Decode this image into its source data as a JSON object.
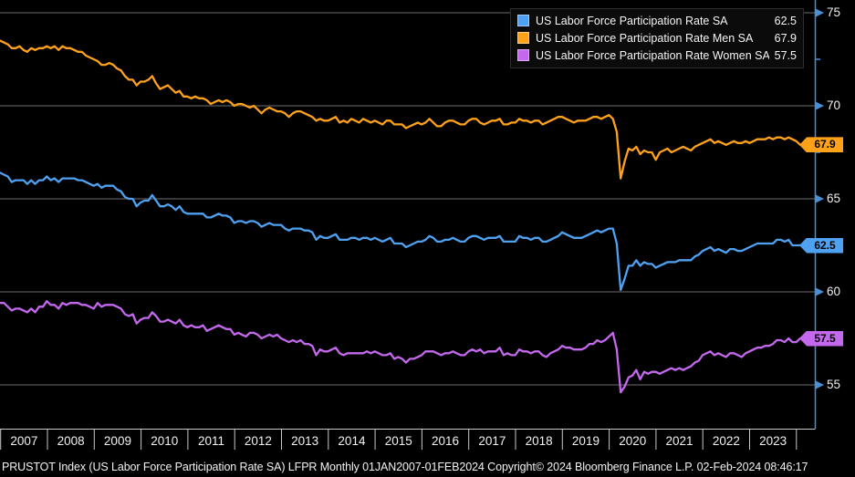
{
  "colors": {
    "background": "#000000",
    "gridline": "#6e6e6e",
    "axis_blue": "#4a8fd4",
    "baseline": "#c9c9c9",
    "text": "#f2f2f2",
    "series_total": "#4fa2f2",
    "series_men": "#ffa219",
    "series_women": "#c468ee"
  },
  "legend": {
    "rows": [
      {
        "label": "US Labor Force Participation Rate SA",
        "value": "62.5",
        "color": "#4fa2f2"
      },
      {
        "label": "US Labor Force Participation Rate Men SA",
        "value": "67.9",
        "color": "#ffa219"
      },
      {
        "label": "US Labor Force Participation Rate Women SA",
        "value": "57.5",
        "color": "#c468ee"
      }
    ]
  },
  "axis_tags": [
    {
      "label": "67.9",
      "value": 67.9,
      "color": "#ffa219"
    },
    {
      "label": "62.5",
      "value": 62.5,
      "color": "#4fa2f2"
    },
    {
      "label": "57.5",
      "value": 57.5,
      "color": "#c468ee"
    }
  ],
  "y_axis": {
    "labels": [
      "75",
      "70",
      "65",
      "60",
      "55"
    ],
    "ticks": [
      75,
      70,
      65,
      60,
      55
    ],
    "minor_ticks": [
      72.5,
      67.5,
      62.5,
      57.5
    ]
  },
  "x_axis": {
    "years": [
      "2007",
      "2008",
      "2009",
      "2010",
      "2011",
      "2012",
      "2013",
      "2014",
      "2015",
      "2016",
      "2017",
      "2018",
      "2019",
      "2020",
      "2021",
      "2022",
      "2023"
    ]
  },
  "status_bar": {
    "text": "PRUSTOT Index (US Labor Force Participation Rate SA) LFPR  Monthly 01JAN2007-01FEB2024 Copyright© 2024 Bloomberg Finance L.P. 02-Feb-2024 08:46:17"
  },
  "chart_data": {
    "type": "line",
    "title": "",
    "frequency": "Monthly",
    "x_range": "01JAN2007-01FEB2024",
    "x_tick_labels": [
      "2007",
      "2008",
      "2009",
      "2010",
      "2011",
      "2012",
      "2013",
      "2014",
      "2015",
      "2016",
      "2017",
      "2018",
      "2019",
      "2020",
      "2021",
      "2022",
      "2023"
    ],
    "ylim": [
      53.3,
      75.4
    ],
    "y_ticks": [
      55,
      60,
      65,
      70,
      75
    ],
    "grid": "horizontal",
    "legend_position": "top-right",
    "series": [
      {
        "name": "US Labor Force Participation Rate SA",
        "color": "#4fa2f2",
        "last_value": 62.5,
        "values": [
          66.4,
          66.3,
          66.2,
          65.9,
          66.0,
          66.0,
          66.0,
          65.8,
          66.0,
          65.8,
          66.0,
          66.0,
          66.2,
          66.0,
          66.1,
          65.9,
          66.1,
          66.1,
          66.1,
          66.1,
          66.0,
          66.0,
          65.9,
          65.8,
          65.7,
          65.8,
          65.6,
          65.7,
          65.7,
          65.7,
          65.5,
          65.4,
          65.1,
          65.0,
          65.0,
          64.6,
          64.8,
          64.9,
          64.9,
          65.2,
          64.9,
          64.6,
          64.6,
          64.7,
          64.6,
          64.4,
          64.6,
          64.3,
          64.2,
          64.2,
          64.2,
          64.2,
          64.2,
          64.0,
          64.0,
          64.1,
          64.2,
          64.1,
          64.1,
          64.0,
          63.7,
          63.8,
          63.8,
          63.7,
          63.8,
          63.8,
          63.7,
          63.5,
          63.6,
          63.7,
          63.6,
          63.6,
          63.6,
          63.4,
          63.3,
          63.4,
          63.4,
          63.4,
          63.3,
          63.3,
          63.2,
          62.8,
          63.0,
          62.9,
          62.9,
          63.0,
          63.1,
          62.8,
          62.8,
          62.8,
          62.9,
          62.9,
          62.8,
          62.9,
          62.9,
          62.8,
          62.9,
          62.8,
          62.7,
          62.8,
          62.9,
          62.6,
          62.6,
          62.6,
          62.4,
          62.5,
          62.6,
          62.7,
          62.7,
          62.8,
          63.0,
          62.9,
          62.7,
          62.7,
          62.8,
          62.8,
          62.9,
          62.8,
          62.7,
          62.7,
          62.9,
          63.0,
          63.0,
          62.9,
          62.8,
          62.9,
          62.9,
          62.9,
          63.0,
          62.7,
          62.7,
          62.7,
          62.7,
          63.0,
          62.9,
          62.9,
          62.8,
          62.9,
          62.9,
          62.7,
          62.7,
          62.8,
          62.9,
          63.0,
          63.2,
          63.1,
          63.0,
          62.9,
          62.9,
          62.9,
          63.0,
          63.1,
          63.2,
          63.3,
          63.2,
          63.3,
          63.4,
          63.4,
          62.6,
          60.1,
          60.7,
          61.4,
          61.4,
          61.7,
          61.4,
          61.6,
          61.5,
          61.5,
          61.3,
          61.4,
          61.5,
          61.6,
          61.6,
          61.6,
          61.7,
          61.7,
          61.7,
          61.7,
          61.9,
          62.0,
          62.2,
          62.3,
          62.4,
          62.2,
          62.3,
          62.2,
          62.1,
          62.3,
          62.3,
          62.2,
          62.2,
          62.3,
          62.4,
          62.5,
          62.6,
          62.6,
          62.6,
          62.6,
          62.6,
          62.8,
          62.8,
          62.7,
          62.8,
          62.5,
          62.5,
          62.5
        ]
      },
      {
        "name": "US Labor Force Participation Rate Men SA",
        "color": "#ffa219",
        "last_value": 67.9,
        "values": [
          73.5,
          73.4,
          73.3,
          73.1,
          73.1,
          73.2,
          73.0,
          72.9,
          73.1,
          73.0,
          73.1,
          73.1,
          73.2,
          73.1,
          73.2,
          73.0,
          73.2,
          73.1,
          73.1,
          73.0,
          72.9,
          72.9,
          72.7,
          72.6,
          72.5,
          72.4,
          72.2,
          72.2,
          72.3,
          72.2,
          72.0,
          71.9,
          71.6,
          71.4,
          71.4,
          71.1,
          71.3,
          71.3,
          71.4,
          71.6,
          71.2,
          70.9,
          71.0,
          71.1,
          70.9,
          70.7,
          70.8,
          70.5,
          70.5,
          70.4,
          70.5,
          70.4,
          70.4,
          70.3,
          70.1,
          70.2,
          70.3,
          70.2,
          70.3,
          70.2,
          70.0,
          70.1,
          70.1,
          70.0,
          69.9,
          70.0,
          69.8,
          69.6,
          69.8,
          69.9,
          69.8,
          69.7,
          69.7,
          69.6,
          69.4,
          69.6,
          69.7,
          69.7,
          69.6,
          69.5,
          69.4,
          69.2,
          69.3,
          69.2,
          69.2,
          69.3,
          69.4,
          69.1,
          69.2,
          69.1,
          69.3,
          69.2,
          69.1,
          69.3,
          69.2,
          69.1,
          69.2,
          69.1,
          69.0,
          69.2,
          69.2,
          69.0,
          69.0,
          69.0,
          68.8,
          68.9,
          69.0,
          69.1,
          69.0,
          69.1,
          69.3,
          69.1,
          68.9,
          68.9,
          69.1,
          69.2,
          69.2,
          69.1,
          69.0,
          69.0,
          69.2,
          69.3,
          69.3,
          69.1,
          69.0,
          69.1,
          69.2,
          69.2,
          69.3,
          69.0,
          69.0,
          69.1,
          69.1,
          69.3,
          69.2,
          69.2,
          69.1,
          69.2,
          69.2,
          69.0,
          69.1,
          69.2,
          69.3,
          69.4,
          69.4,
          69.3,
          69.2,
          69.1,
          69.2,
          69.2,
          69.2,
          69.3,
          69.4,
          69.4,
          69.3,
          69.4,
          69.5,
          69.3,
          68.6,
          66.1,
          67.0,
          67.7,
          67.6,
          67.8,
          67.4,
          67.6,
          67.5,
          67.5,
          67.1,
          67.5,
          67.6,
          67.7,
          67.5,
          67.6,
          67.7,
          67.8,
          67.7,
          67.6,
          67.8,
          67.9,
          68.0,
          68.1,
          68.2,
          68.0,
          68.1,
          68.0,
          67.9,
          68.0,
          68.1,
          68.0,
          68.0,
          68.1,
          68.0,
          68.1,
          68.2,
          68.2,
          68.2,
          68.3,
          68.2,
          68.3,
          68.3,
          68.2,
          68.3,
          68.2,
          68.1,
          67.9
        ]
      },
      {
        "name": "US Labor Force Participation Rate Women SA",
        "color": "#c468ee",
        "last_value": 57.5,
        "values": [
          59.4,
          59.4,
          59.2,
          59.0,
          59.1,
          59.1,
          59.0,
          58.9,
          59.1,
          58.9,
          59.2,
          59.2,
          59.5,
          59.3,
          59.3,
          59.1,
          59.4,
          59.3,
          59.4,
          59.4,
          59.4,
          59.3,
          59.3,
          59.2,
          59.1,
          59.4,
          59.2,
          59.3,
          59.3,
          59.3,
          59.2,
          59.1,
          58.8,
          58.7,
          58.8,
          58.3,
          58.5,
          58.6,
          58.6,
          58.9,
          58.7,
          58.4,
          58.4,
          58.5,
          58.4,
          58.3,
          58.5,
          58.2,
          58.1,
          58.2,
          58.1,
          58.1,
          58.2,
          57.9,
          58.0,
          58.1,
          58.2,
          58.1,
          58.0,
          58.0,
          57.7,
          57.8,
          57.7,
          57.6,
          57.8,
          57.8,
          57.7,
          57.5,
          57.6,
          57.7,
          57.6,
          57.7,
          57.5,
          57.4,
          57.3,
          57.4,
          57.3,
          57.4,
          57.2,
          57.2,
          57.1,
          56.6,
          56.9,
          56.8,
          56.8,
          56.9,
          57.0,
          56.7,
          56.6,
          56.7,
          56.7,
          56.7,
          56.7,
          56.7,
          56.8,
          56.7,
          56.8,
          56.7,
          56.6,
          56.6,
          56.7,
          56.4,
          56.5,
          56.4,
          56.2,
          56.4,
          56.4,
          56.5,
          56.6,
          56.8,
          56.8,
          56.8,
          56.7,
          56.6,
          56.7,
          56.7,
          56.8,
          56.7,
          56.6,
          56.6,
          56.8,
          56.9,
          56.8,
          56.9,
          56.7,
          56.8,
          56.8,
          56.8,
          57.0,
          56.6,
          56.7,
          56.6,
          56.6,
          56.9,
          56.8,
          56.8,
          56.7,
          56.8,
          56.8,
          56.6,
          56.5,
          56.7,
          56.8,
          56.9,
          57.1,
          57.0,
          57.0,
          56.9,
          56.9,
          56.9,
          57.0,
          57.2,
          57.2,
          57.4,
          57.3,
          57.4,
          57.6,
          57.8,
          56.9,
          54.6,
          54.9,
          55.4,
          55.5,
          55.8,
          55.3,
          55.7,
          55.6,
          55.7,
          55.7,
          55.6,
          55.7,
          55.8,
          55.9,
          55.8,
          55.9,
          55.8,
          55.9,
          56.0,
          56.2,
          56.3,
          56.6,
          56.7,
          56.8,
          56.6,
          56.7,
          56.6,
          56.5,
          56.7,
          56.7,
          56.6,
          56.5,
          56.7,
          56.8,
          56.9,
          57.0,
          57.0,
          57.1,
          57.1,
          57.2,
          57.4,
          57.4,
          57.3,
          57.5,
          57.3,
          57.3,
          57.5
        ]
      }
    ]
  }
}
